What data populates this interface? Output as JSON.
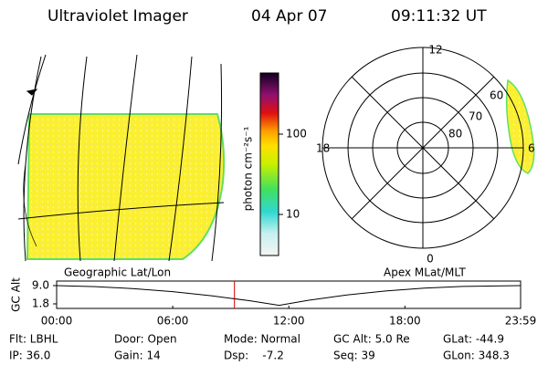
{
  "header": {
    "instrument": "Ultraviolet Imager",
    "date": "04 Apr 07",
    "time": "09:11:32 UT"
  },
  "colorbar": {
    "label": "photon cm⁻²s⁻¹",
    "ticks": [
      "100",
      "10"
    ]
  },
  "polar": {
    "top": "12",
    "bottom": "0",
    "left": "18",
    "right": "6",
    "rings": [
      "60",
      "70",
      "80"
    ]
  },
  "chart_data": {
    "type": "line",
    "annotations": [
      "Geographic Lat/Lon",
      "Apex MLat/MLT"
    ],
    "ylabel": "GC Alt",
    "x": [
      0,
      2,
      4,
      6,
      8,
      10,
      11.5,
      13,
      15,
      17,
      19,
      21,
      23.98
    ],
    "series": [
      {
        "color": "#000000",
        "values": [
          9.0,
          8.6,
          7.8,
          6.6,
          5.0,
          3.0,
          1.2,
          3.2,
          5.3,
          6.9,
          8.0,
          8.7,
          9.0
        ]
      }
    ],
    "xlim": [
      0,
      23.98
    ],
    "xticks": [
      {
        "value": 0,
        "label": "00:00"
      },
      {
        "value": 6,
        "label": "06:00"
      },
      {
        "value": 12,
        "label": "12:00"
      },
      {
        "value": 18,
        "label": "18:00"
      },
      {
        "value": 23.98,
        "label": "23:59"
      }
    ],
    "ylim": [
      0,
      10.8
    ],
    "yticks": [
      {
        "value": 9,
        "label": "9.0"
      },
      {
        "value": 1.8,
        "label": "1.8"
      }
    ],
    "marker": {
      "x": 9.19,
      "color": "#d00000"
    }
  },
  "footer": {
    "rows": [
      [
        "Flt: LBHL",
        "Door: Open",
        "Mode: Normal",
        "GC Alt: 5.0 Re",
        "GLat: -44.9"
      ],
      [
        "IP: 36.0",
        "Gain: 14",
        "Dsp:    -7.2",
        "Seq: 39",
        "GLon: 348.3"
      ]
    ]
  }
}
